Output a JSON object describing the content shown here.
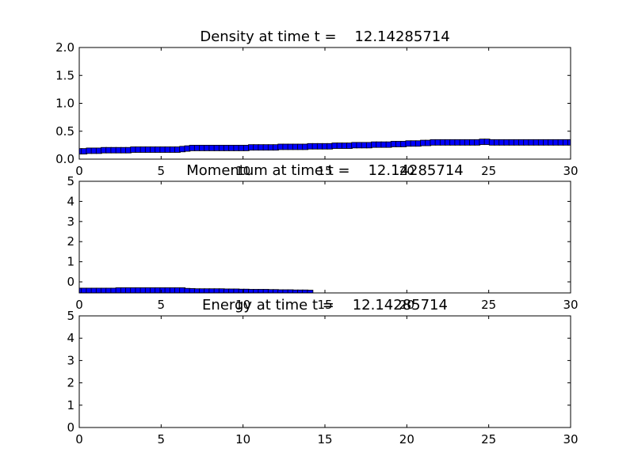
{
  "colors": {
    "marker_fill": "#0000ff",
    "marker_edge": "#000000",
    "axes": "#000000",
    "background": "#ffffff"
  },
  "chart_data": [
    {
      "type": "scatter",
      "title": "Density at time t =    12.14285714",
      "xlabel": "",
      "ylabel": "",
      "xlim": [
        0,
        30
      ],
      "ylim": [
        0,
        2
      ],
      "xticks": [
        0,
        5,
        10,
        15,
        20,
        25,
        30
      ],
      "xtick_labels": [
        "0",
        "5",
        "10",
        "15",
        "20",
        "25",
        "30"
      ],
      "yticks": [
        0,
        0.5,
        1,
        1.5,
        2
      ],
      "ytick_labels": [
        "0.0",
        "0.5",
        "1.0",
        "1.5",
        "2.0"
      ],
      "grid": false,
      "marker": "square",
      "series": [
        {
          "x": [
            0.0,
            0.3,
            0.6,
            0.9,
            1.2,
            1.5,
            1.8,
            2.1,
            2.4,
            2.7,
            3.0,
            3.3,
            3.6,
            3.9,
            4.2,
            4.5,
            4.8,
            5.1,
            5.4,
            5.7,
            6.0,
            6.3,
            6.6,
            6.9,
            7.2,
            7.5,
            7.8,
            8.1,
            8.4,
            8.7,
            9.0,
            9.3,
            9.6,
            9.9,
            10.2,
            10.5,
            10.8,
            11.1,
            11.4,
            11.7,
            12.0,
            12.3,
            12.6,
            12.9,
            13.2,
            13.5,
            13.8,
            14.1,
            14.4,
            14.7,
            15.0,
            15.3,
            15.6,
            15.9,
            16.2,
            16.5,
            16.8,
            17.1,
            17.4,
            17.7,
            18.0,
            18.3,
            18.6,
            18.9,
            19.2,
            19.5,
            19.8,
            20.1,
            20.4,
            20.7,
            21.0,
            21.3,
            21.6,
            21.9,
            22.2,
            22.5,
            22.8,
            23.1,
            23.4,
            23.7,
            24.0,
            24.3,
            24.6,
            24.9,
            25.2,
            25.5,
            25.8,
            26.1,
            26.4,
            26.7,
            27.0,
            27.3,
            27.6,
            27.9,
            28.2,
            28.5,
            28.8,
            29.1,
            29.4,
            29.7,
            30.0
          ],
          "values": [
            0.14,
            0.14,
            0.15,
            0.15,
            0.15,
            0.16,
            0.16,
            0.16,
            0.16,
            0.16,
            0.16,
            0.17,
            0.17,
            0.17,
            0.17,
            0.17,
            0.17,
            0.17,
            0.17,
            0.17,
            0.17,
            0.18,
            0.19,
            0.2,
            0.2,
            0.2,
            0.2,
            0.2,
            0.2,
            0.2,
            0.2,
            0.2,
            0.2,
            0.2,
            0.2,
            0.21,
            0.21,
            0.21,
            0.21,
            0.21,
            0.21,
            0.22,
            0.22,
            0.22,
            0.22,
            0.22,
            0.22,
            0.23,
            0.23,
            0.23,
            0.23,
            0.23,
            0.24,
            0.24,
            0.24,
            0.24,
            0.25,
            0.25,
            0.25,
            0.25,
            0.26,
            0.26,
            0.26,
            0.26,
            0.27,
            0.27,
            0.27,
            0.28,
            0.28,
            0.28,
            0.29,
            0.29,
            0.3,
            0.3,
            0.3,
            0.3,
            0.3,
            0.3,
            0.3,
            0.3,
            0.3,
            0.3,
            0.31,
            0.31,
            0.3,
            0.3,
            0.3,
            0.3,
            0.3,
            0.3,
            0.3,
            0.3,
            0.3,
            0.3,
            0.3,
            0.3,
            0.3,
            0.3,
            0.3,
            0.3,
            0.3
          ]
        }
      ]
    },
    {
      "type": "scatter",
      "title": "Momentum at time t =    12.14285714",
      "xlabel": "",
      "ylabel": "",
      "xlim": [
        0,
        30
      ],
      "ylim": [
        -0.55,
        5
      ],
      "xticks": [
        0,
        5,
        10,
        15,
        20,
        25,
        30
      ],
      "xtick_labels": [
        "0",
        "5",
        "10",
        "15",
        "20",
        "25",
        "30"
      ],
      "yticks": [
        0,
        1,
        2,
        3,
        4,
        5
      ],
      "ytick_labels": [
        "0",
        "1",
        "2",
        "3",
        "4",
        "5"
      ],
      "grid": false,
      "marker": "square",
      "series": [
        {
          "x": [
            0.0,
            0.3,
            0.6,
            0.9,
            1.2,
            1.5,
            1.8,
            2.1,
            2.4,
            2.7,
            3.0,
            3.3,
            3.6,
            3.9,
            4.2,
            4.5,
            4.8,
            5.1,
            5.4,
            5.7,
            6.0,
            6.3,
            6.6,
            6.9,
            7.2,
            7.5,
            7.8,
            8.1,
            8.4,
            8.7,
            9.0,
            9.3,
            9.6,
            9.9,
            10.2,
            10.5,
            10.8,
            11.1,
            11.4,
            11.7,
            12.0,
            12.3,
            12.6,
            12.9,
            13.2,
            13.5,
            13.8,
            14.1
          ],
          "values": [
            -0.45,
            -0.45,
            -0.45,
            -0.45,
            -0.45,
            -0.45,
            -0.45,
            -0.45,
            -0.43,
            -0.43,
            -0.43,
            -0.43,
            -0.43,
            -0.43,
            -0.43,
            -0.43,
            -0.43,
            -0.43,
            -0.43,
            -0.43,
            -0.43,
            -0.43,
            -0.46,
            -0.47,
            -0.48,
            -0.48,
            -0.48,
            -0.48,
            -0.48,
            -0.48,
            -0.49,
            -0.49,
            -0.49,
            -0.5,
            -0.5,
            -0.51,
            -0.51,
            -0.51,
            -0.51,
            -0.52,
            -0.52,
            -0.53,
            -0.53,
            -0.53,
            -0.54,
            -0.54,
            -0.54,
            -0.55
          ]
        }
      ]
    },
    {
      "type": "scatter",
      "title": "Energy at time t =    12.14285714",
      "xlabel": "",
      "ylabel": "",
      "xlim": [
        0,
        30
      ],
      "ylim": [
        0,
        5
      ],
      "xticks": [
        0,
        5,
        10,
        15,
        20,
        25,
        30
      ],
      "xtick_labels": [
        "0",
        "5",
        "10",
        "15",
        "20",
        "25",
        "30"
      ],
      "yticks": [
        0,
        1,
        2,
        3,
        4,
        5
      ],
      "ytick_labels": [
        "0",
        "1",
        "2",
        "3",
        "4",
        "5"
      ],
      "grid": false,
      "marker": "square",
      "series": [
        {
          "x": [],
          "values": []
        }
      ]
    }
  ]
}
